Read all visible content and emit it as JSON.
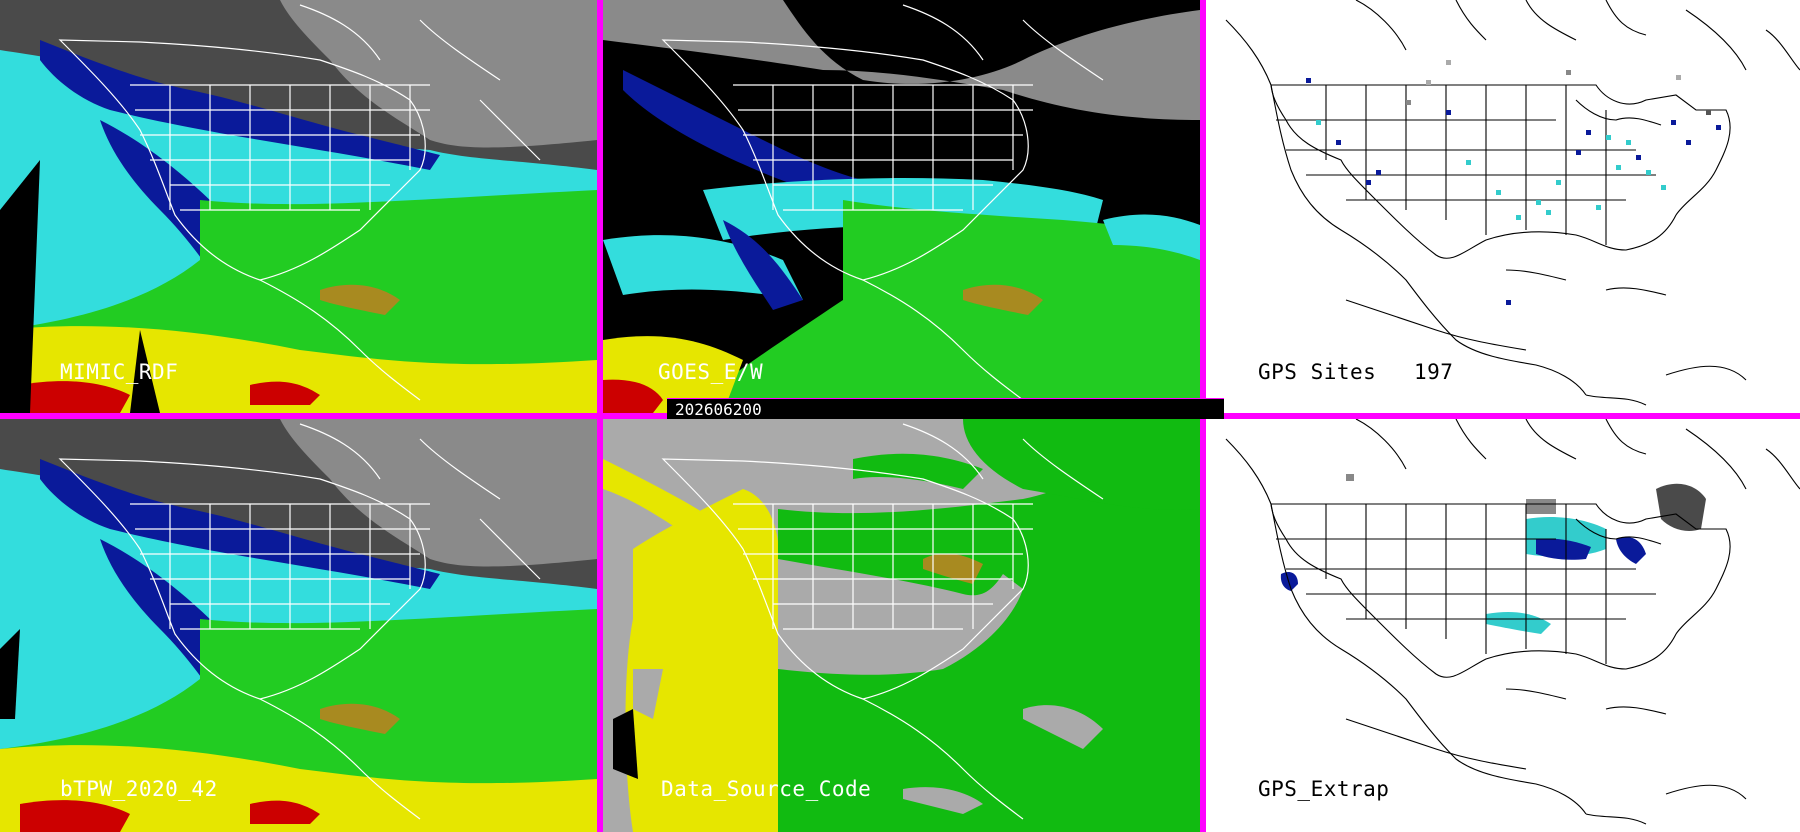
{
  "panels": [
    {
      "id": "mimic-rdf",
      "label": "MIMIC_RDF",
      "theme": "tpw"
    },
    {
      "id": "goes-e-w",
      "label": "GOES_E/W",
      "theme": "tpw-black"
    },
    {
      "id": "gps-sites",
      "label": "GPS Sites",
      "count": "197",
      "theme": "gps-sites"
    },
    {
      "id": "btpw",
      "label": "bTPW_2020_42",
      "theme": "tpw"
    },
    {
      "id": "data-source-code",
      "label": "Data_Source_Code",
      "theme": "source"
    },
    {
      "id": "gps-extrap",
      "label": "GPS_Extrap",
      "theme": "gps-extrap"
    }
  ],
  "timestamp": "202606200",
  "colors": {
    "divider": "#ff00ff",
    "land_outline": "#ffffff",
    "map_outline": "#000000",
    "tpw_dry": "#4a4a4a",
    "tpw_blue": "#0a1a9a",
    "tpw_cyan": "#33dddd",
    "tpw_green": "#22cc22",
    "tpw_yellow": "#e6e600",
    "tpw_red": "#cc0000",
    "source_grey": "#aaaaaa",
    "source_yellow": "#e6e600",
    "source_green": "#11bb11"
  }
}
